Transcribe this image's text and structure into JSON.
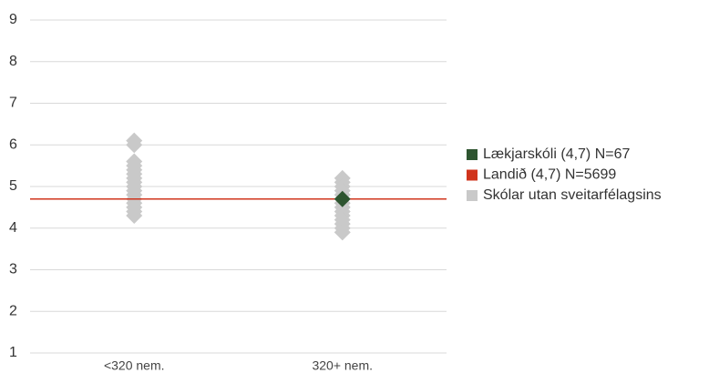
{
  "chart_data": {
    "type": "scatter",
    "categories": [
      "<320 nem.",
      "320+ nem."
    ],
    "ylim": [
      1,
      9
    ],
    "yticks": [
      1,
      2,
      3,
      4,
      5,
      6,
      7,
      8,
      9
    ],
    "grid": true,
    "legend": "right",
    "series": [
      {
        "name": "Lækjarskóli (4,7) N=67",
        "color": "#2e5530",
        "values": [
          null,
          4.7
        ]
      },
      {
        "name": "Landið (4,7) N=5699",
        "color": "#d0341c",
        "kind": "hline",
        "value": 4.7
      },
      {
        "name": "Skólar utan sveitarfélagsins",
        "color": "#c9c9c9",
        "values": [
          [
            6.1,
            6.0,
            5.6,
            5.5,
            5.4,
            5.3,
            5.2,
            5.1,
            5.0,
            4.9,
            4.8,
            4.7,
            4.6,
            4.5,
            4.4,
            4.3
          ],
          [
            5.2,
            5.1,
            5.0,
            4.9,
            4.8,
            4.6,
            4.5,
            4.4,
            4.3,
            4.2,
            4.1,
            4.0,
            3.9
          ]
        ]
      }
    ]
  }
}
